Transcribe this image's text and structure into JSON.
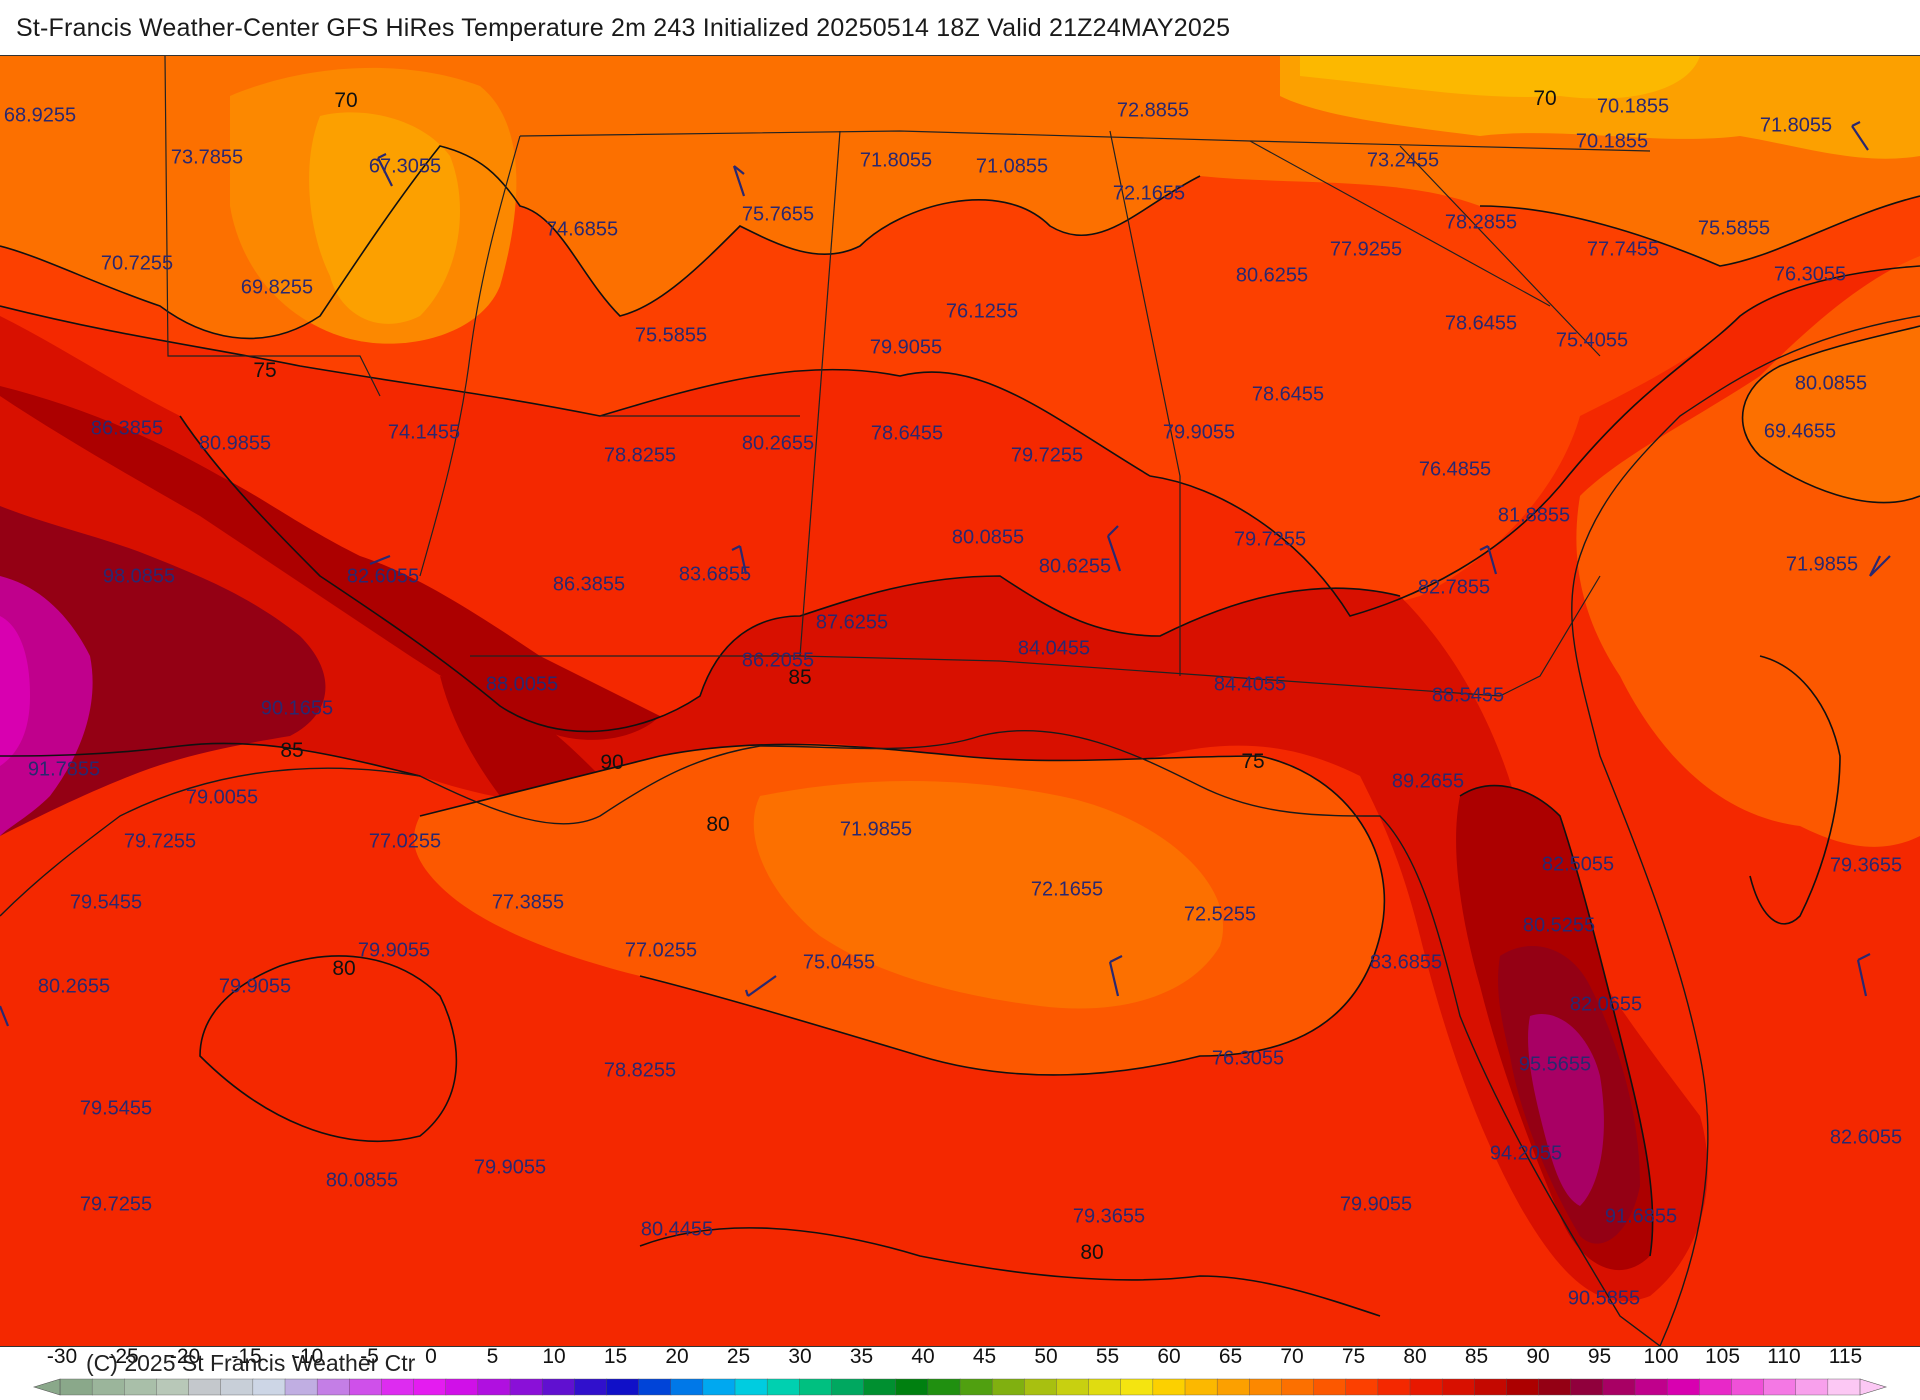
{
  "title": "St-Francis Weather-Center GFS HiRes Temperature 2m  243 Initialized 20250514 18Z Valid 21Z24MAY2025",
  "copyright": "(C) 2025 St Francis Weather Ctr",
  "legend": {
    "ticks": [
      "-30",
      "-25",
      "-20",
      "-15",
      "-10",
      "-5",
      "0",
      "5",
      "10",
      "15",
      "20",
      "25",
      "30",
      "35",
      "40",
      "45",
      "50",
      "55",
      "60",
      "65",
      "70",
      "75",
      "80",
      "85",
      "90",
      "95",
      "100",
      "105",
      "110",
      "115"
    ],
    "colors": [
      "#8aa88a",
      "#9bb59b",
      "#a9bfa9",
      "#b8c8b8",
      "#c4c8cc",
      "#c8cfd8",
      "#cdd6e6",
      "#c0aee2",
      "#c47ee6",
      "#cf50ea",
      "#dd2cf0",
      "#e41cf0",
      "#d010e8",
      "#b010e0",
      "#8a10d8",
      "#6010d0",
      "#3010cc",
      "#1010c8",
      "#0044d8",
      "#0078e8",
      "#00a8f0",
      "#00cce0",
      "#00d0b0",
      "#00c080",
      "#00a860",
      "#009030",
      "#008010",
      "#209010",
      "#50a010",
      "#80b010",
      "#a8c010",
      "#c8d010",
      "#e0dc10",
      "#f4e410",
      "#fcd000",
      "#fcb800",
      "#fca000",
      "#fc8800",
      "#fc7000",
      "#fc5800",
      "#fc4000",
      "#f42800",
      "#e81800",
      "#d81000",
      "#c40800",
      "#ac0000",
      "#940014",
      "#90003c",
      "#a80064",
      "#c0008c",
      "#d800b0",
      "#e828c8",
      "#f050d8",
      "#f478e4",
      "#f8a0ec",
      "#fcc8f4"
    ]
  },
  "stations": [
    {
      "text": "68.9255"
    },
    {
      "text": "73.7855"
    },
    {
      "text": "67.3055"
    },
    {
      "text": "70.7255"
    },
    {
      "text": "69.8255"
    },
    {
      "text": "74.6855"
    },
    {
      "text": "75.7655"
    },
    {
      "text": "71.8055"
    },
    {
      "text": "71.0855"
    },
    {
      "text": "72.8855"
    },
    {
      "text": "72.1655"
    },
    {
      "text": "73.2455"
    },
    {
      "text": "70.1855"
    },
    {
      "text": "70.1855"
    },
    {
      "text": "71.8055"
    },
    {
      "text": "78.2855"
    },
    {
      "text": "77.9255"
    },
    {
      "text": "77.7455"
    },
    {
      "text": "75.5855"
    },
    {
      "text": "80.6255"
    },
    {
      "text": "76.1255"
    },
    {
      "text": "75.5855"
    },
    {
      "text": "79.9055"
    },
    {
      "text": "78.6455"
    },
    {
      "text": "75.4055"
    },
    {
      "text": "76.3055"
    },
    {
      "text": "86.3855"
    },
    {
      "text": "80.9855"
    },
    {
      "text": "74.1455"
    },
    {
      "text": "78.8255"
    },
    {
      "text": "80.2655"
    },
    {
      "text": "78.6455"
    },
    {
      "text": "79.7255"
    },
    {
      "text": "79.9055"
    },
    {
      "text": "78.6455"
    },
    {
      "text": "80.0855"
    },
    {
      "text": "69.4655"
    },
    {
      "text": "76.4855"
    },
    {
      "text": "81.8855"
    },
    {
      "text": "98.0855"
    },
    {
      "text": "82.6055"
    },
    {
      "text": "86.3855"
    },
    {
      "text": "83.6855"
    },
    {
      "text": "80.0855"
    },
    {
      "text": "80.6255"
    },
    {
      "text": "79.7255"
    },
    {
      "text": "71.9855"
    },
    {
      "text": "82.7855"
    },
    {
      "text": "87.6255"
    },
    {
      "text": "86.2055"
    },
    {
      "text": "84.0455"
    },
    {
      "text": "88.0055"
    },
    {
      "text": "84.4055"
    },
    {
      "text": "88.5455"
    },
    {
      "text": "90.1655"
    },
    {
      "text": "91.7855"
    },
    {
      "text": "79.0055"
    },
    {
      "text": "89.2655"
    },
    {
      "text": "79.7255"
    },
    {
      "text": "77.0255"
    },
    {
      "text": "71.9855"
    },
    {
      "text": "79.5455"
    },
    {
      "text": "77.3855"
    },
    {
      "text": "72.1655"
    },
    {
      "text": "72.5255"
    },
    {
      "text": "82.5055"
    },
    {
      "text": "79.3655"
    },
    {
      "text": "80.5255"
    },
    {
      "text": "79.9055"
    },
    {
      "text": "77.0255"
    },
    {
      "text": "75.0455"
    },
    {
      "text": "80.2655"
    },
    {
      "text": "79.9055"
    },
    {
      "text": "83.6855"
    },
    {
      "text": "82.0655"
    },
    {
      "text": "76.3055"
    },
    {
      "text": "78.8255"
    },
    {
      "text": "95.5655"
    },
    {
      "text": "79.5455"
    },
    {
      "text": "82.6055"
    },
    {
      "text": "94.2055"
    },
    {
      "text": "80.0855"
    },
    {
      "text": "79.9055"
    },
    {
      "text": "79.9055"
    },
    {
      "text": "79.3655"
    },
    {
      "text": "91.6855"
    },
    {
      "text": "79.7255"
    },
    {
      "text": "80.4455"
    },
    {
      "text": "90.5855"
    }
  ],
  "contour_labels": [
    {
      "text": "70"
    },
    {
      "text": "70"
    },
    {
      "text": "75"
    },
    {
      "text": "85"
    },
    {
      "text": "85"
    },
    {
      "text": "90"
    },
    {
      "text": "80"
    },
    {
      "text": "75"
    },
    {
      "text": "80"
    },
    {
      "text": "80"
    }
  ]
}
